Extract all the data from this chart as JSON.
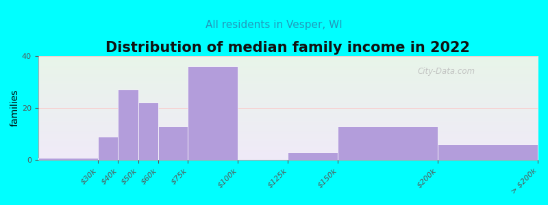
{
  "title": "Distribution of median family income in 2022",
  "subtitle": "All residents in Vesper, WI",
  "ylabel": "families",
  "background_color": "#00FFFF",
  "bar_color": "#b39ddb",
  "bar_edge_color": "#ffffff",
  "bin_edges": [
    0,
    30,
    40,
    50,
    60,
    75,
    100,
    125,
    150,
    200,
    250
  ],
  "bin_labels": [
    "$30k",
    "$40k",
    "$50k",
    "$60k",
    "$75k",
    "$100k",
    "$125k",
    "$150k",
    "$200k",
    "> $200k"
  ],
  "values": [
    1,
    9,
    27,
    22,
    13,
    36,
    0,
    3,
    13,
    6
  ],
  "ylim": [
    0,
    40
  ],
  "yticks": [
    0,
    20,
    40
  ],
  "watermark": "City-Data.com",
  "title_fontsize": 15,
  "subtitle_fontsize": 11,
  "subtitle_color": "#2299bb",
  "ylabel_fontsize": 10,
  "tick_label_fontsize": 8,
  "grid_color": "#ffbbbb",
  "grid_alpha": 0.7
}
